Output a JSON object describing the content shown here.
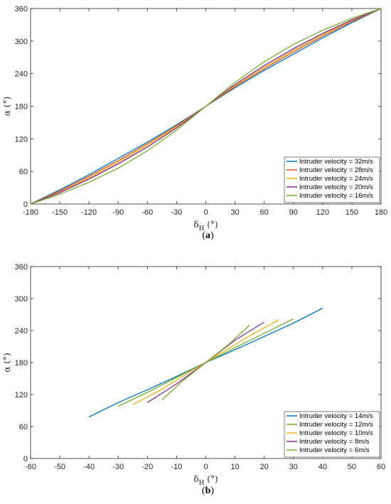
{
  "colors": [
    "#0072BD",
    "#D95319",
    "#EDB120",
    "#7E2F8E",
    "#77AC30"
  ],
  "chart_data": [
    {
      "type": "line",
      "panel_label": "(a)",
      "xlabel": "δ_H (°)",
      "ylabel": "α (°)",
      "xlim": [
        -180,
        180
      ],
      "ylim": [
        0,
        360
      ],
      "xticks": [
        -180,
        -150,
        -120,
        -90,
        -60,
        -30,
        0,
        30,
        60,
        90,
        120,
        150,
        180
      ],
      "yticks": [
        0,
        60,
        120,
        180,
        240,
        300,
        360
      ],
      "grid": false,
      "legend_position": "bottom-right",
      "x": [
        -180,
        -150,
        -120,
        -90,
        -60,
        -30,
        0,
        30,
        60,
        90,
        120,
        150,
        180
      ],
      "series": [
        {
          "name": "Intruder velocity = 32m/s",
          "color": "#0072BD",
          "values": [
            0,
            26,
            54,
            84,
            114,
            146,
            180,
            214,
            246,
            276,
            306,
            334,
            360
          ]
        },
        {
          "name": "Intruder velocity = 28m/s",
          "color": "#D95319",
          "values": [
            0,
            24,
            51,
            80,
            111,
            144,
            180,
            216,
            249,
            280,
            309,
            336,
            360
          ]
        },
        {
          "name": "Intruder velocity = 24m/s",
          "color": "#EDB120",
          "values": [
            0,
            22,
            48,
            77,
            108,
            142,
            180,
            218,
            252,
            283,
            312,
            338,
            360
          ]
        },
        {
          "name": "Intruder velocity = 20m/s",
          "color": "#7E2F8E",
          "values": [
            0,
            21,
            46,
            74,
            105,
            140,
            180,
            220,
            255,
            286,
            314,
            339,
            360
          ]
        },
        {
          "name": "Intruder velocity = 16m/s",
          "color": "#77AC30",
          "values": [
            0,
            18,
            40,
            66,
            98,
            136,
            180,
            224,
            262,
            294,
            320,
            342,
            360
          ]
        }
      ]
    },
    {
      "type": "line",
      "panel_label": "(b)",
      "xlabel": "δ_H (°)",
      "ylabel": "α (°)",
      "xlim": [
        -60,
        60
      ],
      "ylim": [
        0,
        360
      ],
      "xticks": [
        -60,
        -50,
        -40,
        -30,
        -20,
        -10,
        0,
        10,
        20,
        30,
        40,
        50,
        60
      ],
      "yticks": [
        0,
        60,
        120,
        180,
        240,
        300,
        360
      ],
      "grid": false,
      "legend_position": "bottom-right",
      "series": [
        {
          "name": "Intruder velocity = 14m/s",
          "color": "#0072BD",
          "x": [
            -40,
            -30,
            -20,
            -10,
            0,
            10,
            20,
            30,
            40
          ],
          "values": [
            78,
            105,
            129,
            154,
            180,
            204,
            229,
            254,
            282
          ]
        },
        {
          "name": "Intruder velocity = 12m/s",
          "color": "#77AC30",
          "x": [
            -30,
            -20,
            -10,
            0,
            10,
            20,
            30
          ],
          "values": [
            98,
            124,
            152,
            180,
            208,
            235,
            262
          ]
        },
        {
          "name": "Intruder velocity = 10m/s",
          "color": "#EDB120",
          "x": [
            -25,
            -15,
            -5,
            0,
            5,
            15,
            25
          ],
          "values": [
            101,
            130,
            164,
            180,
            197,
            230,
            260
          ]
        },
        {
          "name": "Intruder velocity = 8m/s",
          "color": "#7E2F8E",
          "x": [
            -20,
            -10,
            0,
            10,
            20
          ],
          "values": [
            105,
            140,
            180,
            222,
            256
          ]
        },
        {
          "name": "Intruder velocity = 6m/s",
          "color": "#77AC30",
          "x": [
            -15,
            -8,
            0,
            8,
            15
          ],
          "values": [
            110,
            145,
            180,
            215,
            250
          ]
        }
      ]
    }
  ]
}
